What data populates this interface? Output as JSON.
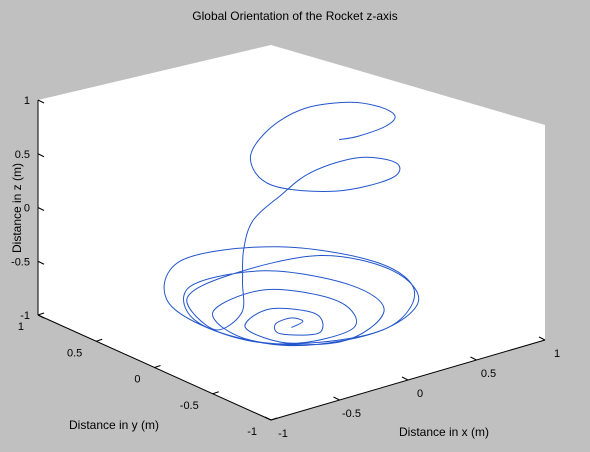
{
  "chart_data": {
    "type": "line3d",
    "title": "Global Orientation of the Rocket z-axis",
    "xlabel": "Distance in x (m)",
    "ylabel": "Distance in y (m)",
    "zlabel": "Distance in z (m)",
    "xlim": [
      -1,
      1
    ],
    "ylim": [
      -1,
      1
    ],
    "zlim": [
      -1,
      1
    ],
    "x_ticks": [
      "-1",
      "-0.5",
      "0",
      "0.5",
      "1"
    ],
    "y_ticks": [
      "-1",
      "-0.5",
      "0",
      "0.5",
      "1"
    ],
    "z_ticks": [
      "-1",
      "-0.5",
      "0",
      "0.5",
      "1"
    ],
    "grid": false,
    "colors": {
      "figure_bg": "#c0c0c0",
      "axes_bg": "#ffffff",
      "line": "#2255cc"
    },
    "series": [
      {
        "description": "unit z-axis direction traced over time: starts spiraling near the bottom (z ~ -1) and rises to the top",
        "points": [
          [
            0.0,
            0.0,
            -1.0
          ],
          [
            0.1,
            0.02,
            -0.99
          ],
          [
            0.08,
            0.1,
            -0.99
          ],
          [
            -0.05,
            0.08,
            -0.99
          ],
          [
            -0.12,
            -0.05,
            -0.99
          ],
          [
            0.05,
            -0.18,
            -0.98
          ],
          [
            0.22,
            0.05,
            -0.98
          ],
          [
            0.05,
            0.25,
            -0.97
          ],
          [
            -0.25,
            0.1,
            -0.96
          ],
          [
            -0.2,
            -0.25,
            -0.95
          ],
          [
            0.2,
            -0.3,
            -0.93
          ],
          [
            0.38,
            0.05,
            -0.92
          ],
          [
            0.15,
            0.4,
            -0.9
          ],
          [
            -0.32,
            0.3,
            -0.89
          ],
          [
            -0.42,
            -0.15,
            -0.89
          ],
          [
            -0.05,
            -0.48,
            -0.88
          ],
          [
            0.42,
            -0.3,
            -0.86
          ],
          [
            0.52,
            0.1,
            -0.85
          ],
          [
            0.25,
            0.52,
            -0.82
          ],
          [
            -0.28,
            0.55,
            -0.79
          ],
          [
            -0.58,
            0.1,
            -0.8
          ],
          [
            -0.4,
            -0.45,
            -0.8
          ],
          [
            0.15,
            -0.62,
            -0.77
          ],
          [
            0.6,
            -0.35,
            -0.72
          ],
          [
            0.7,
            0.1,
            -0.7
          ],
          [
            0.4,
            0.6,
            -0.69
          ],
          [
            -0.2,
            0.72,
            -0.66
          ],
          [
            -0.62,
            0.3,
            -0.72
          ],
          [
            -0.55,
            -0.35,
            -0.76
          ],
          [
            -0.05,
            -0.7,
            -0.71
          ],
          [
            0.48,
            -0.52,
            -0.7
          ],
          [
            0.7,
            -0.05,
            -0.71
          ],
          [
            0.55,
            0.4,
            -0.73
          ],
          [
            0.05,
            0.58,
            -0.81
          ],
          [
            -0.38,
            0.45,
            -0.81
          ],
          [
            -0.52,
            0.05,
            -0.85
          ],
          [
            -0.45,
            -0.1,
            -0.65
          ],
          [
            -0.4,
            -0.05,
            -0.4
          ],
          [
            -0.35,
            0.0,
            -0.15
          ],
          [
            -0.28,
            0.0,
            0.1
          ],
          [
            -0.12,
            -0.05,
            0.3
          ],
          [
            0.1,
            -0.05,
            0.43
          ],
          [
            0.4,
            -0.1,
            0.48
          ],
          [
            0.55,
            -0.25,
            0.45
          ],
          [
            0.35,
            -0.45,
            0.48
          ],
          [
            -0.1,
            -0.5,
            0.55
          ],
          [
            -0.4,
            -0.3,
            0.62
          ],
          [
            -0.3,
            0.0,
            0.68
          ],
          [
            0.0,
            0.2,
            0.74
          ],
          [
            0.3,
            0.25,
            0.8
          ],
          [
            0.5,
            0.1,
            0.86
          ],
          [
            0.55,
            -0.1,
            0.9
          ],
          [
            0.5,
            -0.3,
            0.93
          ],
          [
            0.35,
            -0.4,
            0.94
          ],
          [
            0.15,
            -0.4,
            0.92
          ],
          [
            0.05,
            -0.35,
            0.9
          ]
        ]
      }
    ]
  }
}
